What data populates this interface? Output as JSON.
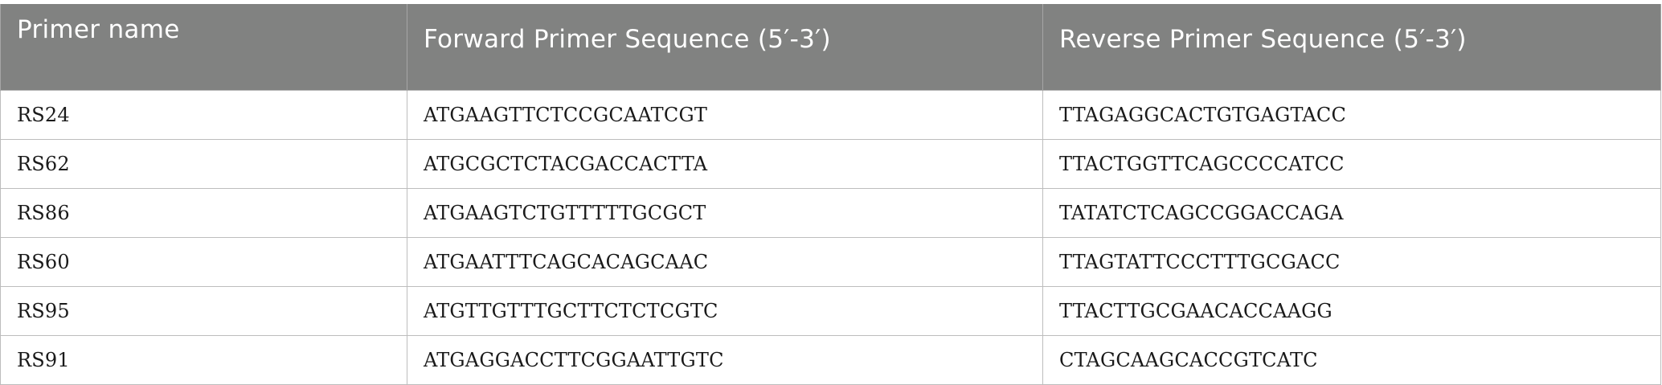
{
  "table": {
    "headers": [
      "Primer name",
      "Forward Primer Sequence (5′-3′)",
      "Reverse Primer Sequence (5′-3′)"
    ],
    "rows": [
      [
        "RS24",
        "ATGAAGTTCTCCGCAATCGT",
        "TTAGAGGCACTGTGAGTACC"
      ],
      [
        "RS62",
        "ATGCGCTCTACGACCACTTA",
        "TTACTGGTTCAGCCCCATCC"
      ],
      [
        "RS86",
        "ATGAAGTCTGTTTTTGCGCT",
        "TATATCTCAGCCGGACCAGA"
      ],
      [
        "RS60",
        "ATGAATTTCAGCACAGCAAC",
        "TTAGTATTCCCTTTGCGACC"
      ],
      [
        "RS95",
        "ATGTTGTTTGCTTCTCTCGTC",
        "TTACTTGCGAACACCAAGG"
      ],
      [
        "RS91",
        "ATGAGGACCTTCGGAATTGTC",
        "CTAGCAAGCACCGTCATC"
      ]
    ]
  }
}
